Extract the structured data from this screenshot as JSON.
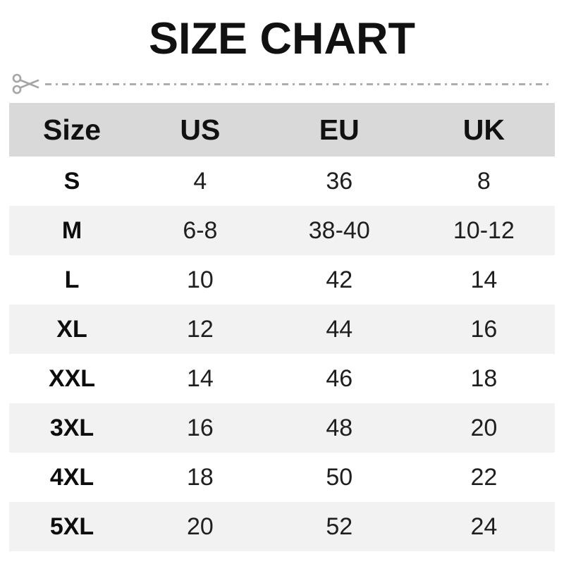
{
  "title": "SIZE CHART",
  "divider": {
    "icon": "scissors-icon",
    "style": "dash-dot cut line"
  },
  "colors": {
    "header_bg": "#d9d9d9",
    "alt_row_bg": "#f2f2f2",
    "row_bg": "#ffffff",
    "text": "#111111",
    "divider": "#aeaeae"
  },
  "chart_data": {
    "type": "table",
    "title": "SIZE CHART",
    "columns": [
      "Size",
      "US",
      "EU",
      "UK"
    ],
    "rows": [
      [
        "S",
        "4",
        "36",
        "8"
      ],
      [
        "M",
        "6-8",
        "38-40",
        "10-12"
      ],
      [
        "L",
        "10",
        "42",
        "14"
      ],
      [
        "XL",
        "12",
        "44",
        "16"
      ],
      [
        "XXL",
        "14",
        "46",
        "18"
      ],
      [
        "3XL",
        "16",
        "48",
        "20"
      ],
      [
        "4XL",
        "18",
        "50",
        "22"
      ],
      [
        "5XL",
        "20",
        "52",
        "24"
      ]
    ]
  }
}
